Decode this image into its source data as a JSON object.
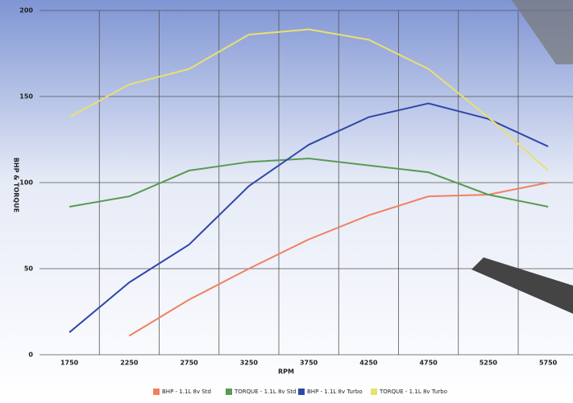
{
  "chart_data": {
    "type": "line",
    "x_label": "RPM",
    "y_label": "BHP & TORQUE",
    "categories": [
      "1750",
      "2250",
      "2750",
      "3250",
      "3750",
      "4250",
      "4750",
      "5250",
      "5750"
    ],
    "ylim": [
      0,
      200
    ],
    "yticks": [
      0,
      50,
      100,
      150,
      200
    ],
    "grid": true,
    "series": [
      {
        "name": "BHP - 1.1L 8v Std",
        "color": "#f08060",
        "values": [
          null,
          11,
          32,
          50,
          67,
          81,
          92,
          93,
          100
        ]
      },
      {
        "name": "TORQUE - 1.1L 8v Std",
        "color": "#5a9a50",
        "values": [
          86,
          92,
          107,
          112,
          114,
          110,
          106,
          93,
          86
        ]
      },
      {
        "name": "BHP - 1.1L 8v Turbo",
        "color": "#2f48a8",
        "values": [
          13,
          42,
          64,
          98,
          122,
          138,
          146,
          137,
          121
        ]
      },
      {
        "name": "TORQUE - 1.1L 8v Turbo",
        "color": "#e8e070",
        "values": [
          138,
          157,
          166,
          186,
          189,
          183,
          166,
          138,
          107
        ]
      }
    ]
  }
}
